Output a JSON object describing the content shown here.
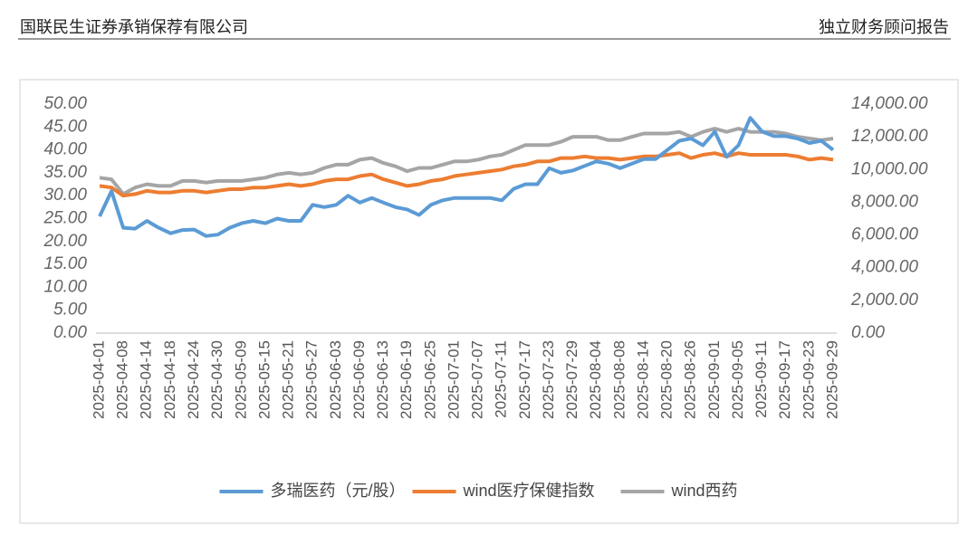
{
  "header": {
    "left": "国联民生证券承销保荐有限公司",
    "right": "独立财务顾问报告"
  },
  "chart_data": {
    "type": "line",
    "categories": [
      "2025-04-01",
      null,
      "2025-04-08",
      null,
      "2025-04-14",
      null,
      "2025-04-18",
      null,
      "2025-04-24",
      null,
      "2025-04-30",
      null,
      "2025-05-09",
      null,
      "2025-05-15",
      null,
      "2025-05-21",
      null,
      "2025-05-27",
      null,
      "2025-06-03",
      null,
      "2025-06-09",
      null,
      "2025-06-13",
      null,
      "2025-06-19",
      null,
      "2025-06-25",
      null,
      "2025-07-01",
      null,
      "2025-07-07",
      null,
      "2025-07-11",
      null,
      "2025-07-17",
      null,
      "2025-07-23",
      null,
      "2025-07-29",
      null,
      "2025-08-04",
      null,
      "2025-08-08",
      null,
      "2025-08-14",
      null,
      "2025-08-20",
      null,
      "2025-08-26",
      null,
      "2025-09-01",
      null,
      "2025-09-05",
      null,
      "2025-09-11",
      null,
      "2025-09-17",
      null,
      "2025-09-23",
      null,
      "2025-09-29"
    ],
    "series": [
      {
        "name": "多瑞医药（元/股）",
        "color": "#5b9bd5",
        "values": [
          25.5,
          31,
          23,
          22.8,
          24.5,
          23,
          21.8,
          22.5,
          22.6,
          21.2,
          21.5,
          23,
          24,
          24.5,
          24,
          25,
          24.5,
          24.5,
          28,
          27.5,
          28,
          30,
          28.5,
          29.5,
          28.5,
          27.5,
          27,
          25.8,
          28,
          29,
          29.5,
          29.5,
          29.5,
          29.5,
          29,
          31.5,
          32.5,
          32.5,
          36,
          35,
          35.5,
          36.5,
          37.5,
          37,
          36,
          37,
          38,
          38,
          40,
          42,
          42.5,
          41,
          44,
          38.5,
          41,
          47,
          44,
          43,
          43,
          42.5,
          41.5,
          42,
          40
        ]
      },
      {
        "name": "wind医疗保健指数",
        "color": "#ed7d31",
        "axis": "y2",
        "values": [
          9000,
          8900,
          8400,
          8500,
          8700,
          8600,
          8600,
          8700,
          8700,
          8600,
          8700,
          8800,
          8800,
          8900,
          8900,
          9000,
          9100,
          9000,
          9100,
          9300,
          9400,
          9400,
          9600,
          9700,
          9400,
          9200,
          9000,
          9100,
          9300,
          9400,
          9600,
          9700,
          9800,
          9900,
          10000,
          10200,
          10300,
          10500,
          10500,
          10700,
          10700,
          10800,
          10700,
          10700,
          10600,
          10700,
          10800,
          10800,
          10900,
          11000,
          10700,
          10900,
          11000,
          10800,
          11000,
          10900,
          10900,
          10900,
          10900,
          10800,
          10600,
          10700,
          10600
        ]
      },
      {
        "name": "wind西药",
        "color": "#a5a5a5",
        "axis": "y2",
        "values": [
          9500,
          9400,
          8500,
          8900,
          9100,
          9000,
          9000,
          9300,
          9300,
          9200,
          9300,
          9300,
          9300,
          9400,
          9500,
          9700,
          9800,
          9700,
          9800,
          10100,
          10300,
          10300,
          10600,
          10700,
          10400,
          10200,
          9900,
          10100,
          10100,
          10300,
          10500,
          10500,
          10600,
          10800,
          10900,
          11200,
          11500,
          11500,
          11500,
          11700,
          12000,
          12000,
          12000,
          11800,
          11800,
          12000,
          12200,
          12200,
          12200,
          12300,
          12000,
          12300,
          12500,
          12300,
          12500,
          12300,
          12300,
          12300,
          12200,
          12000,
          11900,
          11800,
          11900
        ]
      }
    ],
    "ylim": [
      0,
      50
    ],
    "yticks": [
      {
        "value": 0,
        "label": "0.00"
      },
      {
        "value": 5,
        "label": "5.00"
      },
      {
        "value": 10,
        "label": "10.00"
      },
      {
        "value": 15,
        "label": "15.00"
      },
      {
        "value": 20,
        "label": "20.00"
      },
      {
        "value": 25,
        "label": "25.00"
      },
      {
        "value": 30,
        "label": "30.00"
      },
      {
        "value": 35,
        "label": "35.00"
      },
      {
        "value": 40,
        "label": "40.00"
      },
      {
        "value": 45,
        "label": "45.00"
      },
      {
        "value": 50,
        "label": "50.00"
      }
    ],
    "y2lim": [
      0,
      14000
    ],
    "y2ticks": [
      {
        "value": 0,
        "label": "0.00"
      },
      {
        "value": 2000,
        "label": "2,000.00"
      },
      {
        "value": 4000,
        "label": "4,000.00"
      },
      {
        "value": 6000,
        "label": "6,000.00"
      },
      {
        "value": 8000,
        "label": "8,000.00"
      },
      {
        "value": 10000,
        "label": "10,000.00"
      },
      {
        "value": 12000,
        "label": "12,000.00"
      },
      {
        "value": 14000,
        "label": "14,000.00"
      }
    ],
    "legend": "bottom"
  }
}
